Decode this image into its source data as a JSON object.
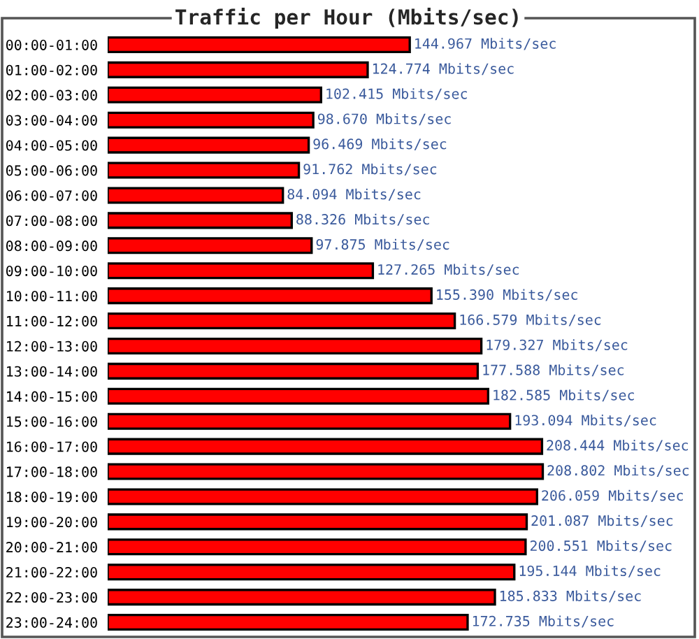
{
  "chart_data": {
    "type": "bar",
    "orientation": "horizontal",
    "title": "Traffic per Hour (Mbits/sec)",
    "categories": [
      "00:00-01:00",
      "01:00-02:00",
      "02:00-03:00",
      "03:00-04:00",
      "04:00-05:00",
      "05:00-06:00",
      "06:00-07:00",
      "07:00-08:00",
      "08:00-09:00",
      "09:00-10:00",
      "10:00-11:00",
      "11:00-12:00",
      "12:00-13:00",
      "13:00-14:00",
      "14:00-15:00",
      "15:00-16:00",
      "16:00-17:00",
      "17:00-18:00",
      "18:00-19:00",
      "19:00-20:00",
      "20:00-21:00",
      "21:00-22:00",
      "22:00-23:00",
      "23:00-24:00"
    ],
    "values": [
      144.967,
      124.774,
      102.415,
      98.67,
      96.469,
      91.762,
      84.094,
      88.326,
      97.875,
      127.265,
      155.39,
      166.579,
      179.327,
      177.588,
      182.585,
      193.094,
      208.444,
      208.802,
      206.059,
      201.087,
      200.551,
      195.144,
      185.833,
      172.735
    ],
    "value_labels": [
      "144.967 Mbits/sec",
      "124.774 Mbits/sec",
      "102.415 Mbits/sec",
      "98.670 Mbits/sec",
      "96.469 Mbits/sec",
      "91.762 Mbits/sec",
      "84.094 Mbits/sec",
      "88.326 Mbits/sec",
      "97.875 Mbits/sec",
      "127.265 Mbits/sec",
      "155.390 Mbits/sec",
      "166.579 Mbits/sec",
      "179.327 Mbits/sec",
      "177.588 Mbits/sec",
      "182.585 Mbits/sec",
      "193.094 Mbits/sec",
      "208.444 Mbits/sec",
      "208.802 Mbits/sec",
      "206.059 Mbits/sec",
      "201.087 Mbits/sec",
      "200.551 Mbits/sec",
      "195.144 Mbits/sec",
      "185.833 Mbits/sec",
      "172.735 Mbits/sec"
    ],
    "color": "#ff0000",
    "tick_labels": "y"
  }
}
